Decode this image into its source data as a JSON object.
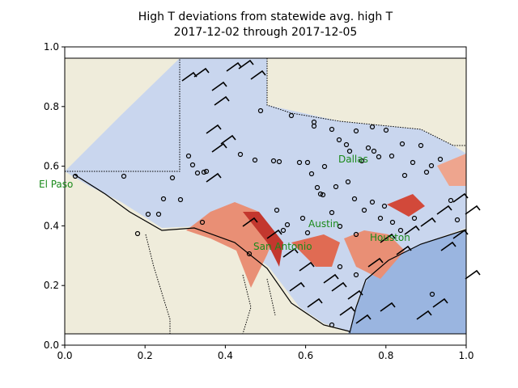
{
  "chart_data": {
    "type": "map",
    "title": "High T deviations from statewide avg. high T",
    "subtitle": "2017-12-02 through 2017-12-05",
    "xlim": [
      0,
      1
    ],
    "ylim": [
      0,
      1
    ],
    "xticks": [
      {
        "value": 0,
        "label": "0.0"
      },
      {
        "value": 0.2,
        "label": "0.2"
      },
      {
        "value": 0.4,
        "label": "0.4"
      },
      {
        "value": 0.6,
        "label": "0.6"
      },
      {
        "value": 0.8,
        "label": "0.8"
      },
      {
        "value": 1,
        "label": "1.0"
      }
    ],
    "yticks": [
      {
        "value": 0,
        "label": "0.0"
      },
      {
        "value": 0.2,
        "label": "0.2"
      },
      {
        "value": 0.4,
        "label": "0.4"
      },
      {
        "value": 0.6,
        "label": "0.6"
      },
      {
        "value": 0.8,
        "label": "0.8"
      },
      {
        "value": 1,
        "label": "1.0"
      }
    ],
    "cities": [
      "El Paso",
      "Dallas",
      "Austin",
      "San Antonio",
      "Houston"
    ]
  }
}
